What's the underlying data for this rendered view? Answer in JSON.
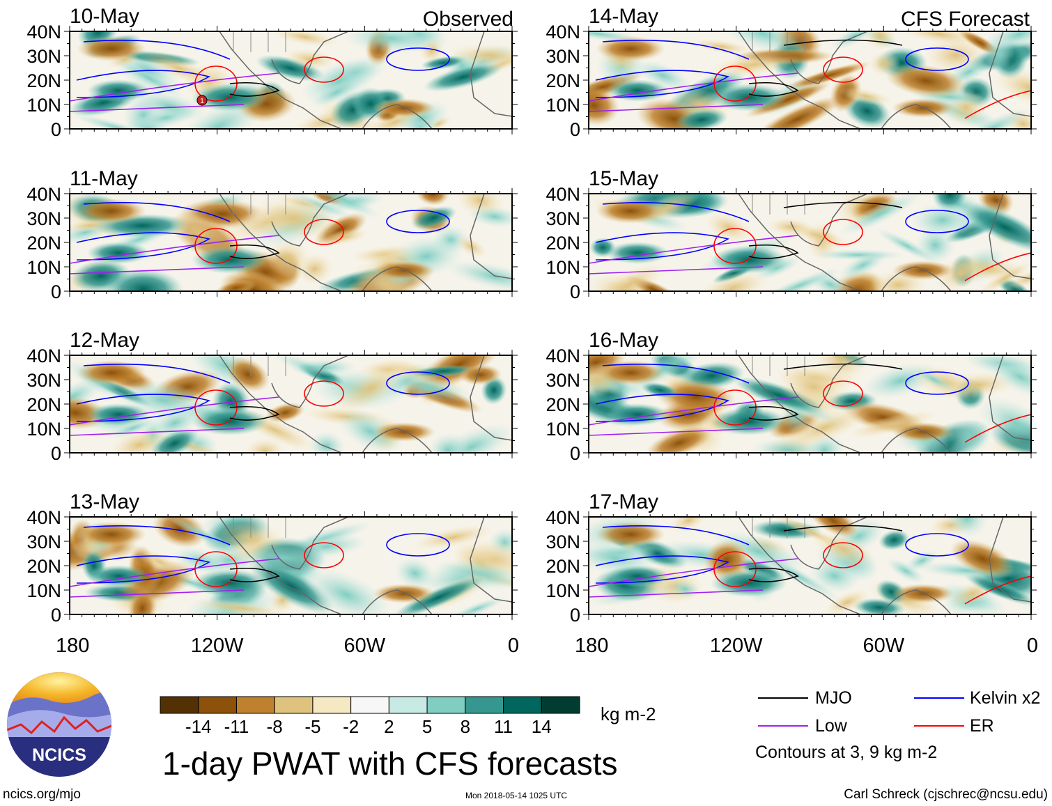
{
  "left_column_label": "Observed",
  "right_column_label": "CFS Forecast",
  "panels": [
    {
      "date": "10-May",
      "column": "observed"
    },
    {
      "date": "11-May",
      "column": "observed"
    },
    {
      "date": "12-May",
      "column": "observed"
    },
    {
      "date": "13-May",
      "column": "observed"
    },
    {
      "date": "14-May",
      "column": "forecast"
    },
    {
      "date": "15-May",
      "column": "forecast"
    },
    {
      "date": "16-May",
      "column": "forecast"
    },
    {
      "date": "17-May",
      "column": "forecast"
    }
  ],
  "latitude_ticks": [
    "40N",
    "30N",
    "20N",
    "10N",
    "0"
  ],
  "longitude_ticks": [
    "180",
    "120W",
    "60W",
    "0"
  ],
  "storm_marker": "1",
  "colorbar": {
    "tick_labels": [
      "-14",
      "-11",
      "-8",
      "-5",
      "-2",
      "2",
      "5",
      "8",
      "11",
      "14"
    ],
    "units": "kg m-2",
    "colors": [
      "#543005",
      "#8c510a",
      "#bf812d",
      "#dfc27d",
      "#f6e8c3",
      "#f7f7f7",
      "#c7eae5",
      "#80cdc1",
      "#35978f",
      "#01665e",
      "#003c30"
    ]
  },
  "legend": {
    "items": [
      {
        "label": "MJO",
        "color": "#000000"
      },
      {
        "label": "Kelvin x2",
        "color": "#0000ff"
      },
      {
        "label": "Low",
        "color": "#a020f0"
      },
      {
        "label": "ER",
        "color": "#ff0000"
      }
    ],
    "note": "Contours at 3, 9 kg m-2"
  },
  "title": "1-day PWAT with CFS forecasts",
  "logo_text": "NCICS",
  "footer": {
    "url": "ncics.org/mjo",
    "timestamp": "Mon 2018-05-14 1025 UTC",
    "credit": "Carl Schreck (cjschrec@ncsu.edu)"
  }
}
